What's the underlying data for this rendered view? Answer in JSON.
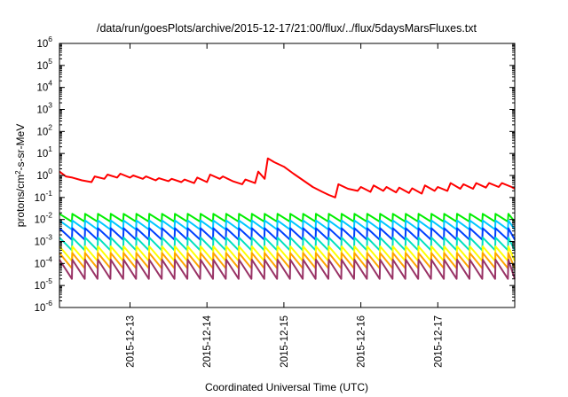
{
  "chart_data": {
    "type": "line",
    "title": "/data/run/goesPlots/archive/2015-12-17/21:00/flux/../flux/5daysMarsFluxes.txt",
    "xlabel": "Coordinated Universal Time (UTC)",
    "ylabel": {
      "prefix": "protons/cm",
      "sup": "2",
      "suffix": "-s-sr-MeV"
    },
    "y_scale": "log",
    "ylim": [
      1e-06,
      1000000.0
    ],
    "xlim": [
      "2015-12-12T02:00",
      "2015-12-18T00:00"
    ],
    "grid": false,
    "legend": "none",
    "x_ticks": [
      {
        "label": "2015-12-13",
        "t": "2015-12-13T00:00"
      },
      {
        "label": "2015-12-14",
        "t": "2015-12-14T00:00"
      },
      {
        "label": "2015-12-15",
        "t": "2015-12-15T00:00"
      },
      {
        "label": "2015-12-16",
        "t": "2015-12-16T00:00"
      },
      {
        "label": "2015-12-17",
        "t": "2015-12-17T00:00"
      }
    ],
    "y_ticks": [
      {
        "base": "10",
        "exp": "-6",
        "value": 1e-06
      },
      {
        "base": "10",
        "exp": "-5",
        "value": 1e-05
      },
      {
        "base": "10",
        "exp": "-4",
        "value": 0.0001
      },
      {
        "base": "10",
        "exp": "-3",
        "value": 0.001
      },
      {
        "base": "10",
        "exp": "-2",
        "value": 0.01
      },
      {
        "base": "10",
        "exp": "-1",
        "value": 0.1
      },
      {
        "base": "10",
        "exp": "0",
        "value": 1
      },
      {
        "base": "10",
        "exp": "1",
        "value": 10
      },
      {
        "base": "10",
        "exp": "2",
        "value": 100
      },
      {
        "base": "10",
        "exp": "3",
        "value": 1000
      },
      {
        "base": "10",
        "exp": "4",
        "value": 10000
      },
      {
        "base": "10",
        "exp": "5",
        "value": 100000
      },
      {
        "base": "10",
        "exp": "6",
        "value": 1000000
      }
    ],
    "series": [
      {
        "color": "#ff0000",
        "points": [
          [
            "2015-12-12T02:00",
            1.5
          ],
          [
            "2015-12-12T04:00",
            0.9
          ],
          [
            "2015-12-12T06:00",
            0.8
          ],
          [
            "2015-12-12T09:00",
            0.6
          ],
          [
            "2015-12-12T12:00",
            0.5
          ],
          [
            "2015-12-12T13:00",
            0.9
          ],
          [
            "2015-12-12T16:00",
            0.7
          ],
          [
            "2015-12-12T17:00",
            1.1
          ],
          [
            "2015-12-12T20:00",
            0.8
          ],
          [
            "2015-12-12T21:00",
            1.2
          ],
          [
            "2015-12-13T00:00",
            0.8
          ],
          [
            "2015-12-13T01:00",
            1.0
          ],
          [
            "2015-12-13T04:00",
            0.7
          ],
          [
            "2015-12-13T05:00",
            0.9
          ],
          [
            "2015-12-13T08:00",
            0.6
          ],
          [
            "2015-12-13T09:00",
            0.75
          ],
          [
            "2015-12-13T12:00",
            0.55
          ],
          [
            "2015-12-13T13:00",
            0.7
          ],
          [
            "2015-12-13T16:00",
            0.5
          ],
          [
            "2015-12-13T17:00",
            0.65
          ],
          [
            "2015-12-13T20:00",
            0.45
          ],
          [
            "2015-12-13T21:00",
            0.8
          ],
          [
            "2015-12-14T00:00",
            0.5
          ],
          [
            "2015-12-14T01:00",
            1.1
          ],
          [
            "2015-12-14T04:00",
            0.7
          ],
          [
            "2015-12-14T05:00",
            0.9
          ],
          [
            "2015-12-14T08:00",
            0.55
          ],
          [
            "2015-12-14T11:00",
            0.4
          ],
          [
            "2015-12-14T12:00",
            0.65
          ],
          [
            "2015-12-14T15:00",
            0.45
          ],
          [
            "2015-12-14T16:00",
            1.5
          ],
          [
            "2015-12-14T18:00",
            0.7
          ],
          [
            "2015-12-14T19:00",
            6.0
          ],
          [
            "2015-12-14T21:00",
            4.0
          ],
          [
            "2015-12-15T00:00",
            2.5
          ],
          [
            "2015-12-15T03:00",
            1.2
          ],
          [
            "2015-12-15T06:00",
            0.6
          ],
          [
            "2015-12-15T09:00",
            0.3
          ],
          [
            "2015-12-15T12:00",
            0.18
          ],
          [
            "2015-12-15T14:00",
            0.13
          ],
          [
            "2015-12-15T16:00",
            0.1
          ],
          [
            "2015-12-15T17:00",
            0.4
          ],
          [
            "2015-12-15T20:00",
            0.25
          ],
          [
            "2015-12-15T23:00",
            0.2
          ],
          [
            "2015-12-16T00:00",
            0.3
          ],
          [
            "2015-12-16T03:00",
            0.18
          ],
          [
            "2015-12-16T04:00",
            0.35
          ],
          [
            "2015-12-16T07:00",
            0.2
          ],
          [
            "2015-12-16T08:00",
            0.3
          ],
          [
            "2015-12-16T11:00",
            0.17
          ],
          [
            "2015-12-16T12:00",
            0.28
          ],
          [
            "2015-12-16T15:00",
            0.16
          ],
          [
            "2015-12-16T16:00",
            0.26
          ],
          [
            "2015-12-16T19:00",
            0.15
          ],
          [
            "2015-12-16T20:00",
            0.35
          ],
          [
            "2015-12-16T23:00",
            0.2
          ],
          [
            "2015-12-17T00:00",
            0.3
          ],
          [
            "2015-12-17T03:00",
            0.2
          ],
          [
            "2015-12-17T04:00",
            0.45
          ],
          [
            "2015-12-17T07:00",
            0.25
          ],
          [
            "2015-12-17T08:00",
            0.4
          ],
          [
            "2015-12-17T11:00",
            0.25
          ],
          [
            "2015-12-17T12:00",
            0.45
          ],
          [
            "2015-12-17T15:00",
            0.28
          ],
          [
            "2015-12-17T16:00",
            0.45
          ],
          [
            "2015-12-17T19:00",
            0.3
          ],
          [
            "2015-12-17T20:00",
            0.45
          ],
          [
            "2015-12-17T23:00",
            0.3
          ],
          [
            "2015-12-18T00:00",
            0.25
          ]
        ]
      },
      {
        "color": "#00ee00",
        "sawtooth": {
          "high": 0.018,
          "low": 0.008,
          "period_hours": 4,
          "start": "2015-12-12T02:00",
          "end": "2015-12-18T00:00"
        }
      },
      {
        "color": "#00c8ff",
        "sawtooth": {
          "high": 0.009,
          "low": 0.0035,
          "period_hours": 4,
          "start": "2015-12-12T02:00",
          "end": "2015-12-18T00:00"
        }
      },
      {
        "color": "#0040ff",
        "sawtooth": {
          "high": 0.004,
          "low": 0.0012,
          "period_hours": 4,
          "start": "2015-12-12T02:00",
          "end": "2015-12-18T00:00"
        }
      },
      {
        "color": "#00e0c0",
        "sawtooth": {
          "high": 0.0015,
          "low": 0.0004,
          "period_hours": 4,
          "start": "2015-12-12T02:00",
          "end": "2015-12-18T00:00"
        }
      },
      {
        "color": "#ffff00",
        "sawtooth": {
          "high": 0.0006,
          "low": 0.00013,
          "period_hours": 4,
          "start": "2015-12-12T02:00",
          "end": "2015-12-18T00:00"
        }
      },
      {
        "color": "#ffa500",
        "sawtooth": {
          "high": 0.0003,
          "low": 6e-05,
          "period_hours": 4,
          "start": "2015-12-12T02:00",
          "end": "2015-12-18T00:00"
        }
      },
      {
        "color": "#993366",
        "sawtooth": {
          "high": 0.00015,
          "low": 2e-05,
          "period_hours": 4,
          "start": "2015-12-12T02:00",
          "end": "2015-12-18T00:00"
        }
      }
    ]
  }
}
